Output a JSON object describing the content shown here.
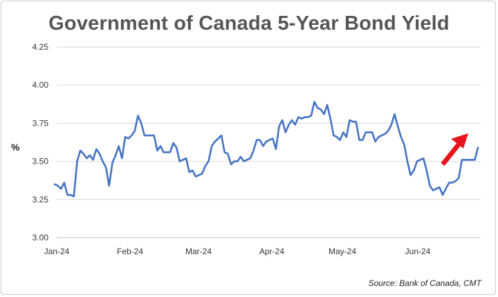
{
  "chart_data": {
    "type": "line",
    "title": "Government of Canada 5-Year Bond Yield",
    "ylabel": "%",
    "xlabel": "",
    "source": "Source: Bank of Canada, CMT",
    "ylim": [
      3.0,
      4.25
    ],
    "yticks": [
      "3.00",
      "3.25",
      "3.50",
      "3.75",
      "4.00",
      "4.25"
    ],
    "xticks": [
      "Jan-24",
      "Feb-24",
      "Mar-24",
      "Apr-24",
      "May-24",
      "Jun-24"
    ],
    "grid": true,
    "colors": {
      "line": "#4472c4",
      "arrow": "#e8141b",
      "grid": "#d9d9d9"
    },
    "annotation": {
      "type": "arrow",
      "direction": "up-right",
      "icon": "red-arrow-icon"
    },
    "series": [
      {
        "values": [
          3.35,
          3.34,
          3.32,
          3.36,
          3.28,
          3.28,
          3.27,
          3.5,
          3.57,
          3.55,
          3.52,
          3.54,
          3.51,
          3.58,
          3.55,
          3.5,
          3.46,
          3.34,
          3.49,
          3.54,
          3.6,
          3.52,
          3.66,
          3.65,
          3.67,
          3.7,
          3.8,
          3.75,
          3.67,
          3.67,
          3.67,
          3.67,
          3.57,
          3.6,
          3.56,
          3.56,
          3.56,
          3.62,
          3.59,
          3.5,
          3.51,
          3.52,
          3.43,
          3.44,
          3.4,
          3.41,
          3.42,
          3.47,
          3.5,
          3.6,
          3.63,
          3.65,
          3.67,
          3.56,
          3.55,
          3.48,
          3.5,
          3.5,
          3.53,
          3.5,
          3.51,
          3.52,
          3.57,
          3.64,
          3.64,
          3.6,
          3.63,
          3.64,
          3.65,
          3.58,
          3.73,
          3.77,
          3.69,
          3.74,
          3.77,
          3.74,
          3.79,
          3.78,
          3.79,
          3.79,
          3.8,
          3.89,
          3.85,
          3.84,
          3.81,
          3.87,
          3.78,
          3.67,
          3.66,
          3.64,
          3.69,
          3.66,
          3.77,
          3.76,
          3.76,
          3.64,
          3.64,
          3.69,
          3.69,
          3.69,
          3.63,
          3.66,
          3.67,
          3.68,
          3.7,
          3.74,
          3.81,
          3.73,
          3.66,
          3.61,
          3.5,
          3.41,
          3.44,
          3.5,
          3.51,
          3.52,
          3.44,
          3.34,
          3.31,
          3.32,
          3.33,
          3.28,
          3.32,
          3.36,
          3.36,
          3.37,
          3.39,
          3.51,
          3.51,
          3.51,
          3.51,
          3.51,
          3.59
        ]
      }
    ]
  }
}
